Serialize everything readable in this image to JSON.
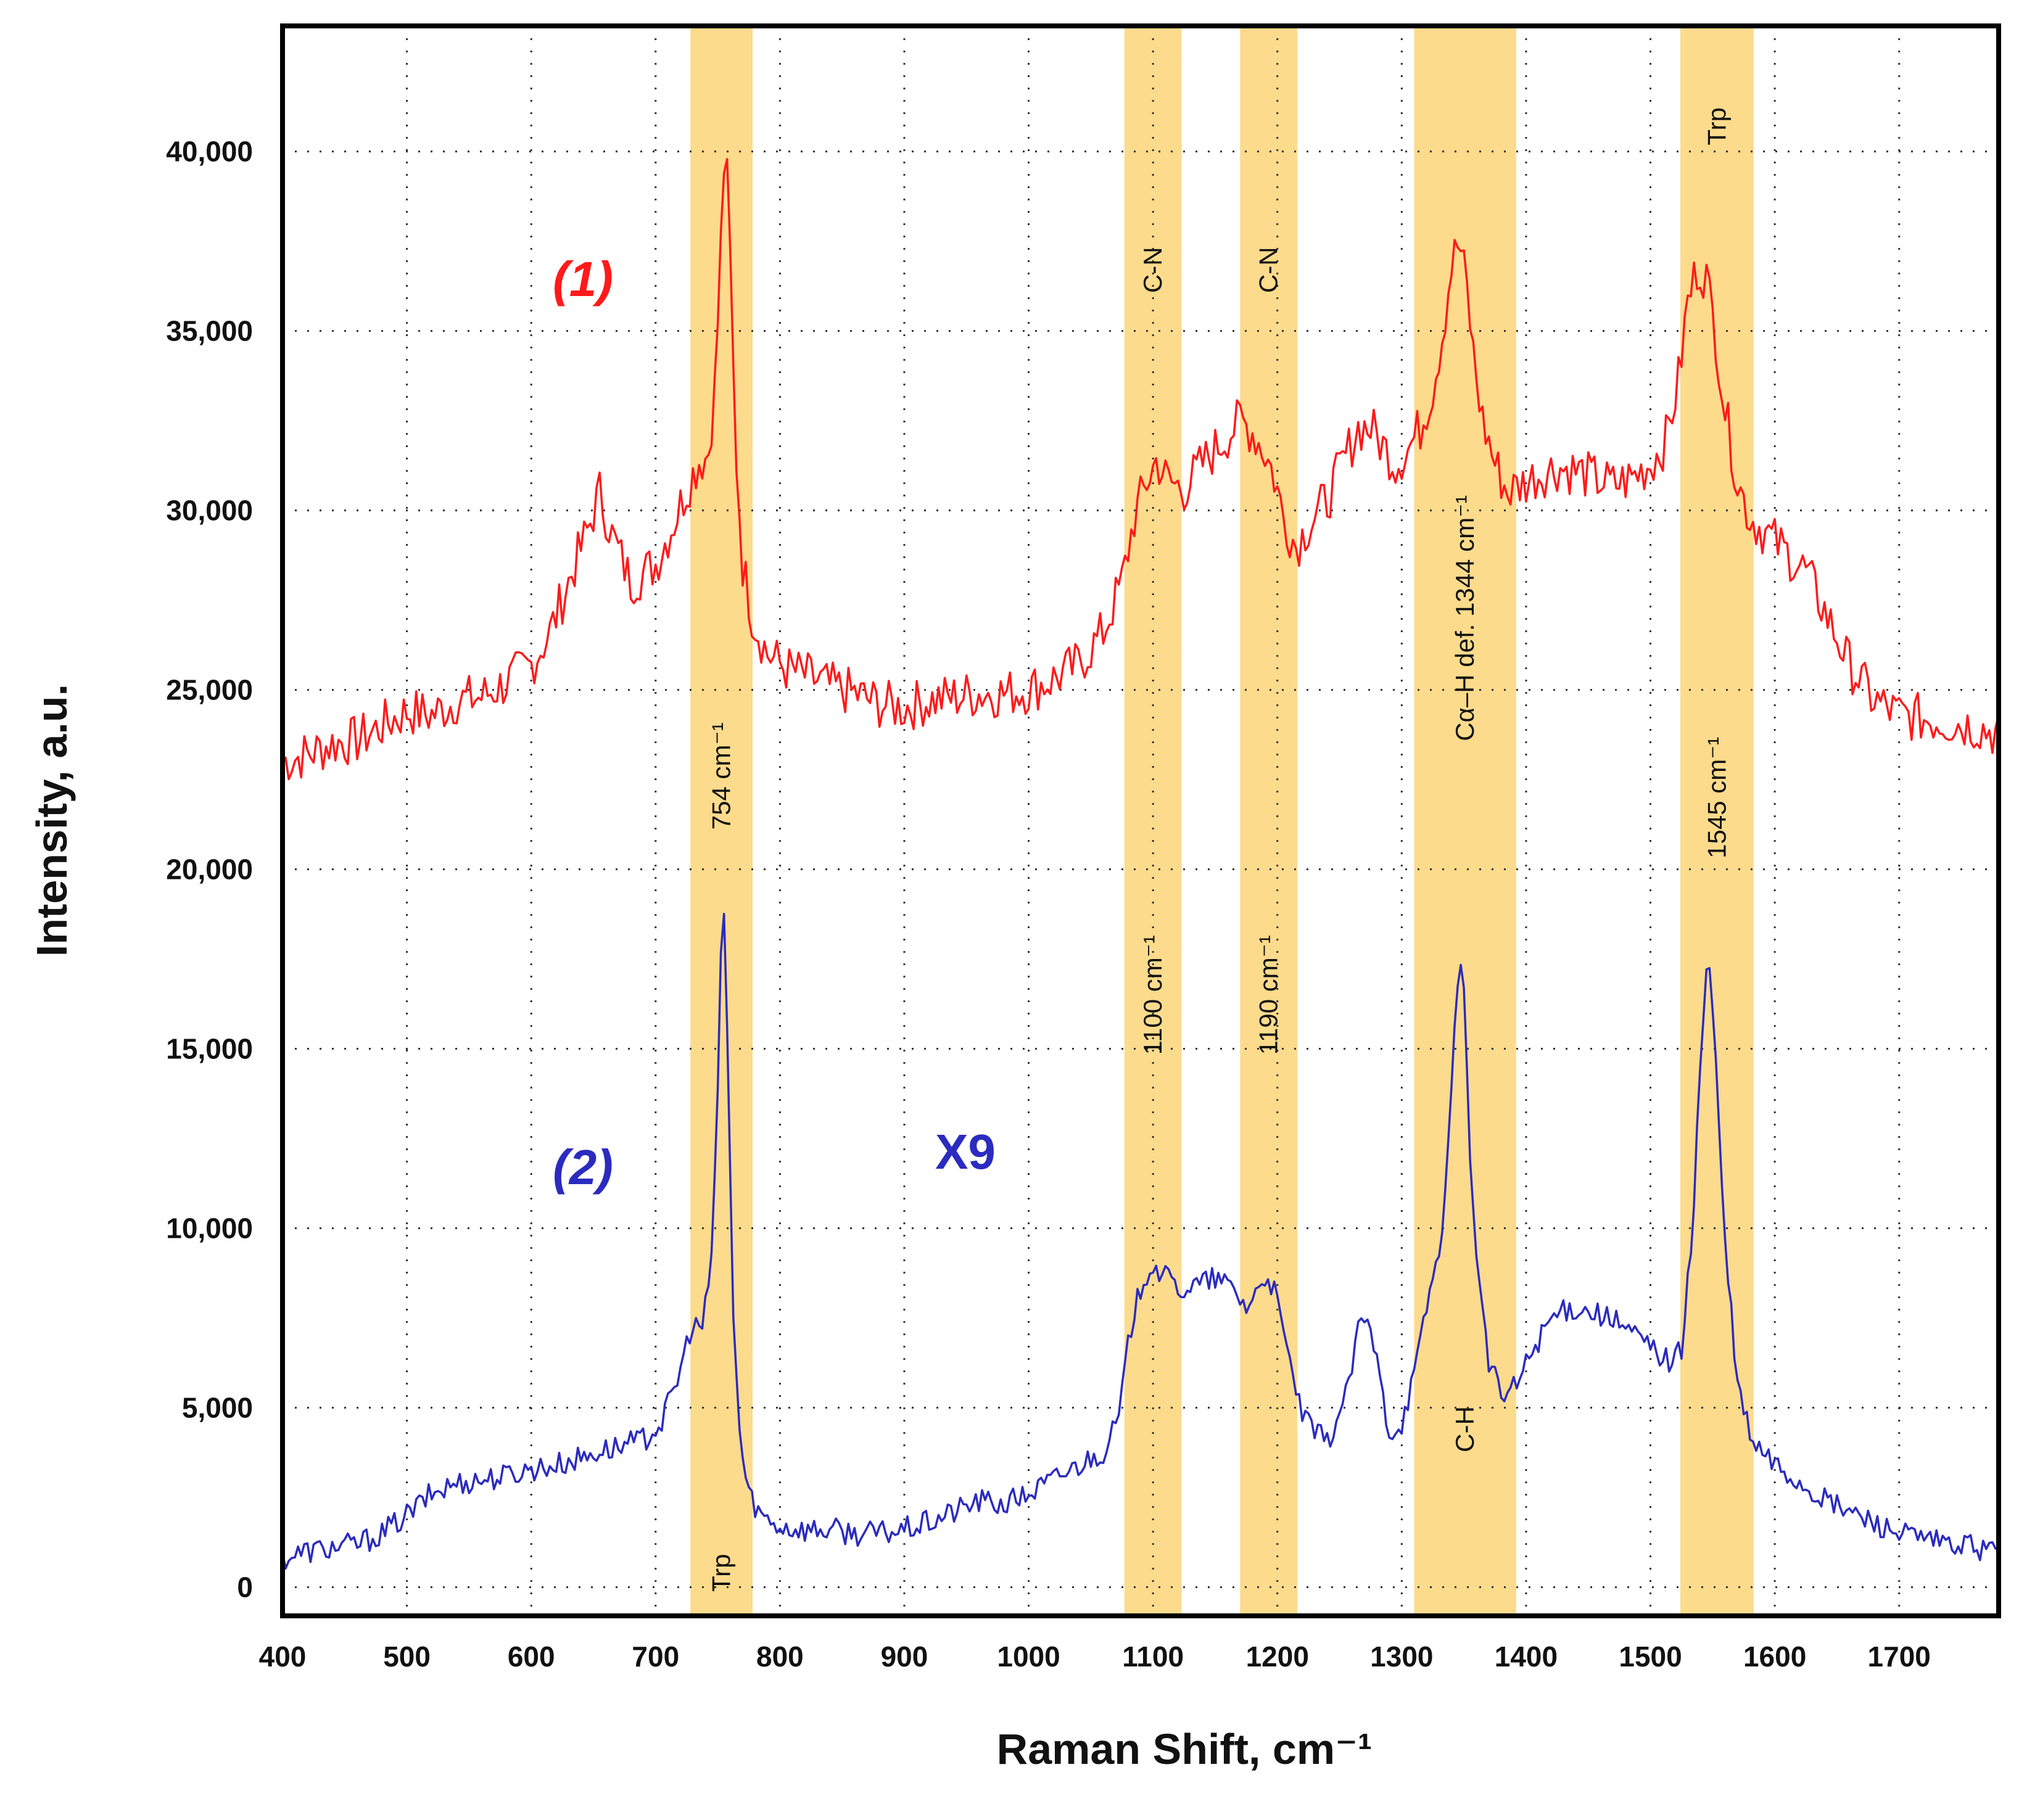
{
  "chart_data": {
    "type": "line",
    "title": "",
    "xlabel": "Raman Shift, cm⁻¹",
    "ylabel": "Intensity, a.u.",
    "xlim": [
      400,
      1780
    ],
    "ylim": [
      -800,
      43500
    ],
    "x_ticks": [
      400,
      500,
      600,
      700,
      800,
      900,
      1000,
      1100,
      1200,
      1300,
      1400,
      1500,
      1600,
      1700
    ],
    "x_tick_labels": [
      "400",
      "500",
      "600",
      "700",
      "800",
      "900",
      "1000",
      "1100",
      "1200",
      "1300",
      "1400",
      "1500",
      "1600",
      "1700"
    ],
    "y_ticks": [
      0,
      5000,
      10000,
      15000,
      20000,
      25000,
      30000,
      35000,
      40000
    ],
    "y_tick_labels": [
      "0",
      "5,000",
      "10,000",
      "15,000",
      "20,000",
      "25,000",
      "30,000",
      "35,000",
      "40,000"
    ],
    "grid": true,
    "highlight_bands": [
      {
        "from": 728,
        "to": 778,
        "labels": [
          "754 cm⁻¹",
          "Trp"
        ]
      },
      {
        "from": 1077,
        "to": 1123,
        "labels": [
          "C-N",
          "1100 cm⁻¹"
        ]
      },
      {
        "from": 1170,
        "to": 1216,
        "labels": [
          "C-N",
          "1190 cm⁻¹"
        ]
      },
      {
        "from": 1310,
        "to": 1392,
        "labels": [
          "Cα–H def. 1344 cm⁻¹",
          "C-H"
        ]
      },
      {
        "from": 1524,
        "to": 1583,
        "labels": [
          "Trp",
          "1545 cm⁻¹"
        ]
      }
    ],
    "annotations": {
      "series1": "(1)",
      "series2": "(2)",
      "multiplier": "X9"
    },
    "series": [
      {
        "name": "(1)",
        "color": "#ff1a1a",
        "x": [
          400,
          420,
          440,
          460,
          480,
          500,
          520,
          540,
          560,
          580,
          600,
          615,
          630,
          645,
          655,
          665,
          680,
          700,
          715,
          725,
          735,
          742,
          748,
          752,
          756,
          760,
          764,
          770,
          778,
          790,
          805,
          820,
          840,
          860,
          880,
          900,
          920,
          940,
          960,
          980,
          1000,
          1020,
          1040,
          1060,
          1075,
          1085,
          1095,
          1103,
          1112,
          1125,
          1140,
          1155,
          1170,
          1180,
          1190,
          1197,
          1205,
          1215,
          1225,
          1240,
          1255,
          1265,
          1275,
          1285,
          1295,
          1305,
          1315,
          1325,
          1333,
          1340,
          1346,
          1352,
          1358,
          1365,
          1375,
          1385,
          1395,
          1410,
          1425,
          1440,
          1455,
          1470,
          1485,
          1500,
          1512,
          1522,
          1530,
          1538,
          1545,
          1552,
          1560,
          1570,
          1580,
          1595,
          1610,
          1625,
          1640,
          1660,
          1680,
          1700,
          1720,
          1740,
          1760,
          1778
        ],
        "values": [
          23000,
          23200,
          23500,
          23600,
          24000,
          24400,
          24300,
          24700,
          24800,
          25200,
          25700,
          26600,
          28000,
          29400,
          30500,
          29300,
          28000,
          28500,
          29700,
          30600,
          31400,
          31500,
          33500,
          37000,
          40500,
          37000,
          32000,
          28500,
          27000,
          26000,
          25600,
          25400,
          25100,
          24900,
          24600,
          24500,
          24700,
          24800,
          24900,
          24900,
          25000,
          25300,
          25700,
          26600,
          28000,
          29800,
          30800,
          31400,
          30800,
          30600,
          31300,
          31900,
          32500,
          32200,
          31600,
          31000,
          29800,
          29000,
          29600,
          30300,
          31500,
          32300,
          32300,
          31800,
          31300,
          31700,
          32300,
          33400,
          35000,
          36800,
          37500,
          36300,
          34200,
          32500,
          31300,
          30500,
          30700,
          31000,
          31200,
          31100,
          30900,
          30700,
          30900,
          31300,
          31900,
          33500,
          35800,
          36800,
          36500,
          35000,
          32800,
          30800,
          29800,
          29300,
          28800,
          28300,
          27200,
          25700,
          24700,
          24300,
          24200,
          24100,
          24000,
          23800
        ]
      },
      {
        "name": "(2)",
        "color": "#2b2bbf",
        "x": [
          400,
          420,
          440,
          460,
          480,
          500,
          520,
          540,
          560,
          580,
          600,
          620,
          640,
          655,
          670,
          690,
          705,
          718,
          728,
          738,
          745,
          750,
          754,
          758,
          762,
          768,
          775,
          785,
          800,
          820,
          840,
          860,
          880,
          900,
          920,
          940,
          960,
          980,
          1000,
          1020,
          1040,
          1060,
          1072,
          1082,
          1092,
          1100,
          1110,
          1122,
          1135,
          1150,
          1165,
          1175,
          1185,
          1192,
          1200,
          1210,
          1222,
          1240,
          1255,
          1268,
          1278,
          1290,
          1300,
          1312,
          1322,
          1330,
          1336,
          1341,
          1346,
          1350,
          1355,
          1362,
          1370,
          1380,
          1392,
          1405,
          1420,
          1440,
          1460,
          1480,
          1500,
          1515,
          1525,
          1533,
          1540,
          1546,
          1552,
          1560,
          1570,
          1582,
          1600,
          1620,
          1640,
          1660,
          1680,
          1700,
          1720,
          1740,
          1760,
          1778
        ],
        "values": [
          800,
          1000,
          1100,
          1200,
          1500,
          2000,
          2600,
          2900,
          3000,
          3100,
          3300,
          3400,
          3600,
          3800,
          3900,
          4100,
          4600,
          5800,
          7200,
          7300,
          9000,
          14000,
          19800,
          15000,
          8000,
          4000,
          2600,
          2000,
          1700,
          1600,
          1600,
          1500,
          1500,
          1600,
          1800,
          2100,
          2400,
          2300,
          2600,
          3000,
          3400,
          3800,
          4600,
          7200,
          8600,
          9000,
          8600,
          8300,
          8400,
          8600,
          8300,
          7800,
          8300,
          8800,
          7900,
          6200,
          4600,
          4000,
          5300,
          7600,
          6700,
          4300,
          4600,
          6200,
          8200,
          9300,
          11500,
          14200,
          17800,
          16500,
          12000,
          8500,
          6300,
          5300,
          5600,
          6600,
          7500,
          7800,
          7600,
          7200,
          6700,
          6300,
          6600,
          9500,
          14500,
          17800,
          15000,
          9500,
          5600,
          4000,
          3400,
          2900,
          2400,
          2100,
          1800,
          1500,
          1300,
          1200,
          1100,
          1000
        ]
      }
    ]
  },
  "colors": {
    "band": "#fcdb8c",
    "frame": "#000000",
    "grid": "#333333"
  }
}
